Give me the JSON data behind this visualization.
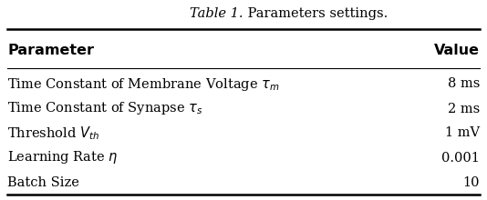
{
  "title_italic": "Table 1.",
  "title_normal": " Parameters settings.",
  "col_headers": [
    "Parameter",
    "Value"
  ],
  "rows": [
    [
      "Time Constant of Membrane Voltage $\\tau_m$",
      "8 ms"
    ],
    [
      "Time Constant of Synapse $\\tau_s$",
      "2 ms"
    ],
    [
      "Threshold $V_{th}$",
      "1 mV"
    ],
    [
      "Learning Rate $\\eta$",
      "0.001"
    ],
    [
      "Batch Size",
      "10"
    ]
  ],
  "background_color": "#ffffff",
  "title_fontsize": 10.5,
  "header_fontsize": 11.5,
  "row_fontsize": 10.5
}
